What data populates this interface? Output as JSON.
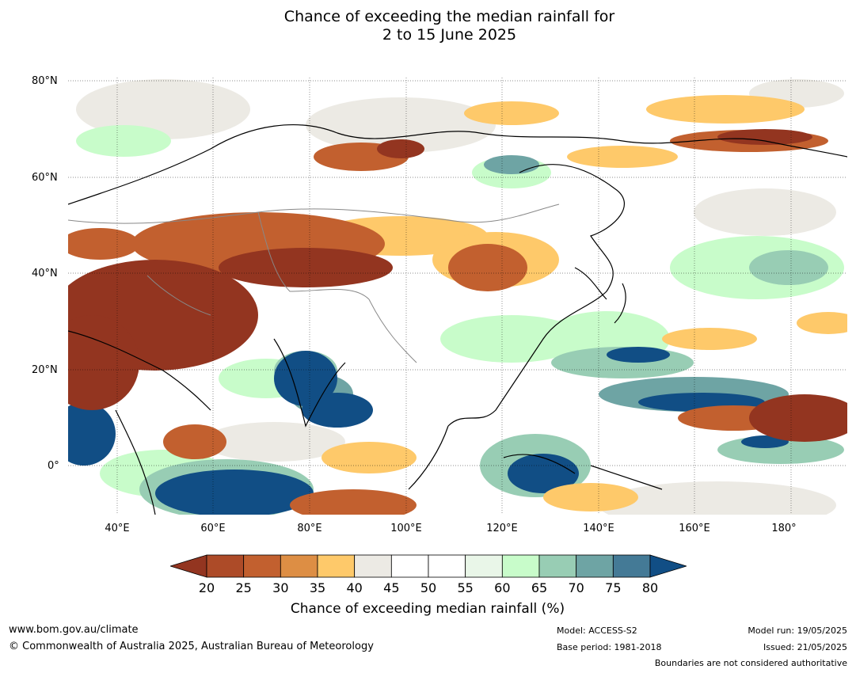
{
  "title_line1": "Chance of exceeding the median rainfall for",
  "title_line2": "2 to 15 June 2025",
  "lat_labels": [
    "80°N",
    "60°N",
    "40°N",
    "20°N",
    "0°"
  ],
  "lon_labels": [
    "40°E",
    "60°E",
    "80°E",
    "100°E",
    "120°E",
    "140°E",
    "160°E",
    "180°"
  ],
  "colorbar": {
    "ticks": [
      "20",
      "25",
      "30",
      "35",
      "40",
      "45",
      "50",
      "55",
      "60",
      "65",
      "70",
      "75",
      "80"
    ],
    "colors": [
      "#933520",
      "#ad4b28",
      "#c2602f",
      "#dd8e44",
      "#fec96a",
      "#eceae4",
      "#ffffff",
      "#ffffff",
      "#e9f6e8",
      "#c8fcca",
      "#98cdb4",
      "#6ea4a4",
      "#447a96",
      "#114e85"
    ],
    "title": "Chance of exceeding median rainfall (%)"
  },
  "footer": {
    "url": "www.bom.gov.au/climate",
    "copyright": "© Commonwealth of Australia 2025, Australian Bureau of Meteorology",
    "model": "Model: ACCESS-S2",
    "base_period": "Base period: 1981-2018",
    "model_run": "Model run: 19/05/2025",
    "issued": "Issued: 21/05/2025",
    "disclaimer": "Boundaries are not considered authoritative"
  }
}
